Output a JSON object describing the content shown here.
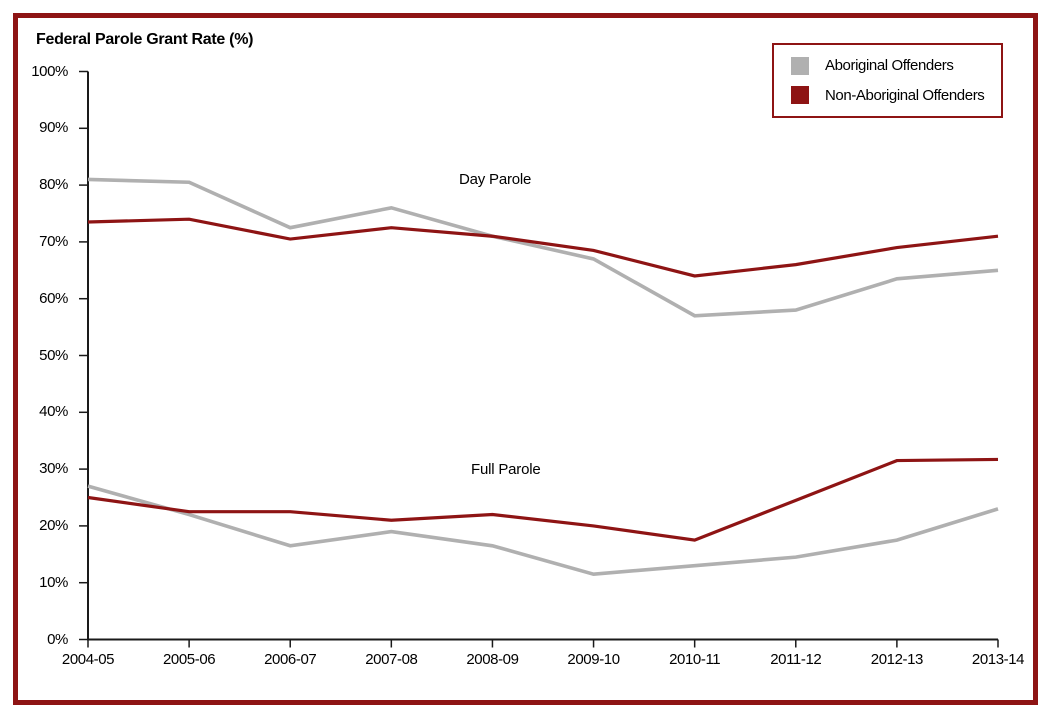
{
  "page": {
    "background_color": "#ffffff",
    "frame_border_color": "#8e1414"
  },
  "title": "Federal Parole Grant Rate (%)",
  "chart_data": {
    "type": "line",
    "title": "Federal Parole Grant Rate (%)",
    "categories": [
      "2004-05",
      "2005-06",
      "2006-07",
      "2007-08",
      "2008-09",
      "2009-10",
      "2010-11",
      "2011-12",
      "2012-13",
      "2013-14"
    ],
    "y_axis": {
      "min": 0,
      "max": 100,
      "step": 10,
      "tick_labels": [
        "0%",
        "10%",
        "20%",
        "30%",
        "40%",
        "50%",
        "60%",
        "70%",
        "80%",
        "90%",
        "100%"
      ]
    },
    "grid": false,
    "legend": {
      "position": "top-right",
      "entries": [
        {
          "label": "Aboriginal Offenders",
          "color": "#b0b0b0"
        },
        {
          "label": "Non-Aboriginal Offenders",
          "color": "#8e1414"
        }
      ]
    },
    "annotations": [
      {
        "text": "Day Parole"
      },
      {
        "text": "Full Parole"
      }
    ],
    "series": [
      {
        "name": "Day Parole - Aboriginal Offenders",
        "group": "Day Parole",
        "legend": "Aboriginal Offenders",
        "color": "#b0b0b0",
        "values": [
          81,
          80.5,
          72.5,
          76,
          71,
          67,
          57,
          58,
          63.5,
          65
        ]
      },
      {
        "name": "Day Parole - Non-Aboriginal Offenders",
        "group": "Day Parole",
        "legend": "Non-Aboriginal Offenders",
        "color": "#8e1414",
        "values": [
          73.5,
          74,
          70.5,
          72.5,
          71,
          68.5,
          64,
          66,
          69,
          71
        ]
      },
      {
        "name": "Full Parole - Aboriginal Offenders",
        "group": "Full Parole",
        "legend": "Aboriginal Offenders",
        "color": "#b0b0b0",
        "values": [
          27,
          22,
          16.5,
          19,
          16.5,
          11.5,
          13,
          14.5,
          17.5,
          23
        ]
      },
      {
        "name": "Full Parole - Non-Aboriginal Offenders",
        "group": "Full Parole",
        "legend": "Non-Aboriginal Offenders",
        "color": "#8e1414",
        "values": [
          25,
          22.5,
          22.5,
          21,
          22,
          20,
          17.5,
          24.5,
          31.5,
          31.7
        ]
      }
    ]
  }
}
